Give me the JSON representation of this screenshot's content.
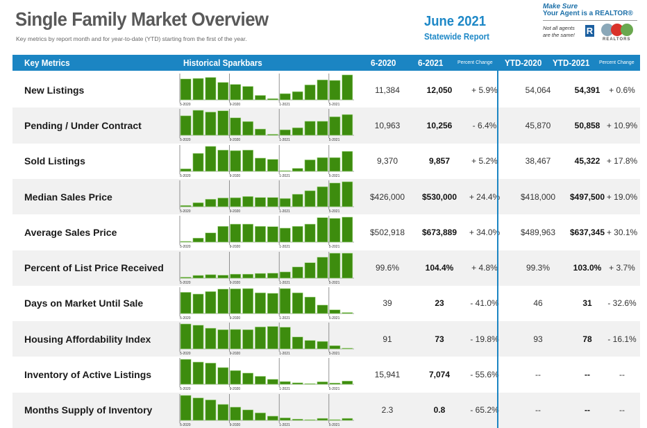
{
  "header": {
    "title": "Single Family Market Overview",
    "subtitle": "Key metrics by report month and for year-to-date (YTD) starting from the first of the year.",
    "report_month": "June 2021",
    "report_scope": "Statewide Report"
  },
  "logo": {
    "line1": "Make Sure",
    "line2": "Your Agent is a REALTOR®",
    "line3a": "Not all agents",
    "line3b": "are the same!",
    "r_mark": "R",
    "org_word": "REALTORS"
  },
  "colors": {
    "accent_blue": "#1b85c3",
    "bar_green": "#3d8c0e",
    "row_shade": "#f1f1f1"
  },
  "table": {
    "columns": [
      "Key Metrics",
      "Historical Sparkbars",
      "6-2020",
      "6-2021",
      "Percent Change",
      "YTD-2020",
      "YTD-2021",
      "Percent Change"
    ],
    "spark_axis_labels": [
      "5-2020",
      "9-2020",
      "1-2021",
      "5-2021"
    ],
    "rows": [
      {
        "metric": "New Listings",
        "m2020": "11,384",
        "m2021": "12,050",
        "pct": "+ 5.9%",
        "ytd2020": "54,064",
        "ytd2021": "54,391",
        "ytd_pct": "+ 0.6%"
      },
      {
        "metric": "Pending / Under Contract",
        "m2020": "10,963",
        "m2021": "10,256",
        "pct": "- 6.4%",
        "ytd2020": "45,870",
        "ytd2021": "50,858",
        "ytd_pct": "+ 10.9%"
      },
      {
        "metric": "Sold Listings",
        "m2020": "9,370",
        "m2021": "9,857",
        "pct": "+ 5.2%",
        "ytd2020": "38,467",
        "ytd2021": "45,322",
        "ytd_pct": "+ 17.8%"
      },
      {
        "metric": "Median Sales Price",
        "m2020": "$426,000",
        "m2021": "$530,000",
        "pct": "+ 24.4%",
        "ytd2020": "$418,000",
        "ytd2021": "$497,500",
        "ytd_pct": "+ 19.0%"
      },
      {
        "metric": "Average Sales Price",
        "m2020": "$502,918",
        "m2021": "$673,889",
        "pct": "+ 34.0%",
        "ytd2020": "$489,963",
        "ytd2021": "$637,345",
        "ytd_pct": "+ 30.1%"
      },
      {
        "metric": "Percent of List Price Received",
        "m2020": "99.6%",
        "m2021": "104.4%",
        "pct": "+ 4.8%",
        "ytd2020": "99.3%",
        "ytd2021": "103.0%",
        "ytd_pct": "+ 3.7%"
      },
      {
        "metric": "Days on Market Until Sale",
        "m2020": "39",
        "m2021": "23",
        "pct": "- 41.0%",
        "ytd2020": "46",
        "ytd2021": "31",
        "ytd_pct": "- 32.6%"
      },
      {
        "metric": "Housing Affordability Index",
        "m2020": "91",
        "m2021": "73",
        "pct": "- 19.8%",
        "ytd2020": "93",
        "ytd2021": "78",
        "ytd_pct": "- 16.1%"
      },
      {
        "metric": "Inventory of Active Listings",
        "m2020": "15,941",
        "m2021": "7,074",
        "pct": "- 55.6%",
        "ytd2020": "--",
        "ytd2021": "--",
        "ytd_pct": "--"
      },
      {
        "metric": "Months Supply of Inventory",
        "m2020": "2.3",
        "m2021": "0.8",
        "pct": "- 65.2%",
        "ytd2020": "--",
        "ytd2021": "--",
        "ytd_pct": "--"
      }
    ]
  },
  "chart_data": {
    "type": "bar",
    "title": "Historical Sparkbars",
    "categories": [
      "5-2020",
      "6-2020",
      "7-2020",
      "8-2020",
      "9-2020",
      "10-2020",
      "11-2020",
      "12-2020",
      "1-2021",
      "2-2021",
      "3-2021",
      "4-2021",
      "5-2021",
      "6-2021"
    ],
    "tick_labels": [
      "5-2020",
      "9-2020",
      "1-2021",
      "5-2021"
    ],
    "value_scale": "relative (0-1 of row max)",
    "series": [
      {
        "name": "New Listings",
        "values": [
          0.84,
          0.86,
          0.9,
          0.7,
          0.62,
          0.54,
          0.18,
          0.05,
          0.25,
          0.33,
          0.6,
          0.8,
          0.78,
          1.0
        ]
      },
      {
        "name": "Pending / Under Contract",
        "values": [
          0.78,
          1.0,
          0.93,
          0.98,
          0.7,
          0.55,
          0.25,
          0.04,
          0.22,
          0.3,
          0.56,
          0.56,
          0.74,
          0.83
        ]
      },
      {
        "name": "Sold Listings",
        "values": [
          0.1,
          0.72,
          1.0,
          0.85,
          0.83,
          0.85,
          0.53,
          0.48,
          0.02,
          0.12,
          0.46,
          0.55,
          0.55,
          0.8
        ]
      },
      {
        "name": "Median Sales Price",
        "values": [
          0.05,
          0.16,
          0.3,
          0.35,
          0.36,
          0.41,
          0.37,
          0.37,
          0.33,
          0.5,
          0.64,
          0.8,
          0.95,
          1.0
        ]
      },
      {
        "name": "Average Sales Price",
        "values": [
          0.03,
          0.16,
          0.37,
          0.63,
          0.72,
          0.72,
          0.63,
          0.62,
          0.56,
          0.63,
          0.72,
          0.98,
          0.95,
          1.0
        ]
      },
      {
        "name": "Percent of List Price Received",
        "values": [
          0.04,
          0.11,
          0.14,
          0.12,
          0.16,
          0.16,
          0.19,
          0.2,
          0.25,
          0.45,
          0.62,
          0.84,
          1.0,
          1.0
        ]
      },
      {
        "name": "Days on Market Until Sale",
        "values": [
          0.85,
          0.78,
          0.88,
          0.98,
          0.99,
          1.0,
          0.83,
          0.81,
          1.0,
          0.83,
          0.66,
          0.34,
          0.15,
          0.04
        ]
      },
      {
        "name": "Housing Affordability Index",
        "values": [
          1.0,
          0.95,
          0.83,
          0.77,
          0.78,
          0.77,
          0.88,
          0.9,
          0.87,
          0.48,
          0.34,
          0.3,
          0.13,
          0.03
        ]
      },
      {
        "name": "Inventory of Active Listings",
        "values": [
          1.0,
          0.89,
          0.85,
          0.67,
          0.55,
          0.45,
          0.32,
          0.2,
          0.11,
          0.06,
          0.02,
          0.1,
          0.05,
          0.13
        ]
      },
      {
        "name": "Months Supply of Inventory",
        "values": [
          1.0,
          0.9,
          0.82,
          0.64,
          0.53,
          0.42,
          0.3,
          0.17,
          0.1,
          0.05,
          0.02,
          0.08,
          0.03,
          0.08
        ]
      }
    ]
  }
}
